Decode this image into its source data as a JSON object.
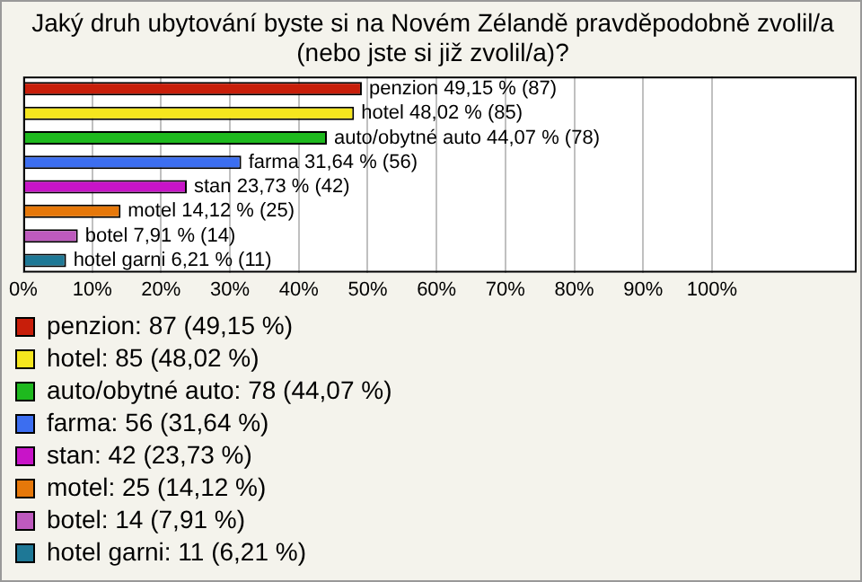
{
  "chart_data": {
    "type": "bar",
    "orientation": "horizontal",
    "stacked": true,
    "title": "Jaký druh ubytování byste si na Novém Zélandě pravděpodobně zvolil/a (nebo jste si již zvolil/a)?",
    "categories": [
      null,
      null,
      null,
      null,
      null,
      null,
      null,
      null
    ],
    "series": [
      {
        "name": "penzion: 87 (49,15 %)",
        "color": "#c81e0a",
        "values": [
          49.15,
          null,
          null,
          null,
          null,
          null,
          null,
          null
        ],
        "value_labels": [
          "penzion 49,15 % (87)",
          null,
          null,
          null,
          null,
          null,
          null,
          null
        ]
      },
      {
        "name": "hotel: 85 (48,02 %)",
        "color": "#f5e61e",
        "values": [
          null,
          48.02,
          null,
          null,
          null,
          null,
          null,
          null
        ],
        "value_labels": [
          null,
          "hotel 48,02 % (85)",
          null,
          null,
          null,
          null,
          null,
          null
        ]
      },
      {
        "name": "auto/obytné auto: 78 (44,07 %)",
        "color": "#1eb91e",
        "values": [
          null,
          null,
          44.07,
          null,
          null,
          null,
          null,
          null
        ],
        "value_labels": [
          null,
          null,
          "auto/obytné auto 44,07 % (78)",
          null,
          null,
          null,
          null,
          null
        ]
      },
      {
        "name": "farma: 56 (31,64 %)",
        "color": "#3c6ef0",
        "values": [
          null,
          null,
          null,
          31.64,
          null,
          null,
          null,
          null
        ],
        "value_labels": [
          null,
          null,
          null,
          "farma 31,64 % (56)",
          null,
          null,
          null,
          null
        ]
      },
      {
        "name": "stan: 42 (23,73 %)",
        "color": "#c814c8",
        "values": [
          null,
          null,
          null,
          null,
          23.73,
          null,
          null,
          null
        ],
        "value_labels": [
          null,
          null,
          null,
          null,
          "stan 23,73 % (42)",
          null,
          null,
          null
        ]
      },
      {
        "name": "motel: 25 (14,12 %)",
        "color": "#e6780a",
        "values": [
          null,
          null,
          null,
          null,
          null,
          14.12,
          null,
          null
        ],
        "value_labels": [
          null,
          null,
          null,
          null,
          null,
          "motel 14,12 % (25)",
          null,
          null
        ]
      },
      {
        "name": "botel: 14 (7,91 %)",
        "color": "#be5abe",
        "values": [
          null,
          null,
          null,
          null,
          null,
          null,
          7.91,
          null
        ],
        "value_labels": [
          null,
          null,
          null,
          null,
          null,
          null,
          "botel 7,91 % (14)",
          null
        ]
      },
      {
        "name": "hotel garni: 11 (6,21 %)",
        "color": "#1e7896",
        "values": [
          null,
          null,
          null,
          null,
          null,
          null,
          null,
          6.21
        ],
        "value_labels": [
          null,
          null,
          null,
          null,
          null,
          null,
          null,
          "hotel garni 6,21 % (11)"
        ]
      }
    ],
    "xlim": [
      0,
      121
    ],
    "xticks": [
      {
        "value": 0,
        "label": "0%"
      },
      {
        "value": 10,
        "label": "10%"
      },
      {
        "value": 20,
        "label": "20%"
      },
      {
        "value": 30,
        "label": "30%"
      },
      {
        "value": 40,
        "label": "40%"
      },
      {
        "value": 50,
        "label": "50%"
      },
      {
        "value": 60,
        "label": "60%"
      },
      {
        "value": 70,
        "label": "70%"
      },
      {
        "value": 80,
        "label": "80%"
      },
      {
        "value": 90,
        "label": "90%"
      },
      {
        "value": 100,
        "label": "100%"
      }
    ],
    "grid": "x",
    "tick_labels": "x",
    "legend": "bottom"
  }
}
